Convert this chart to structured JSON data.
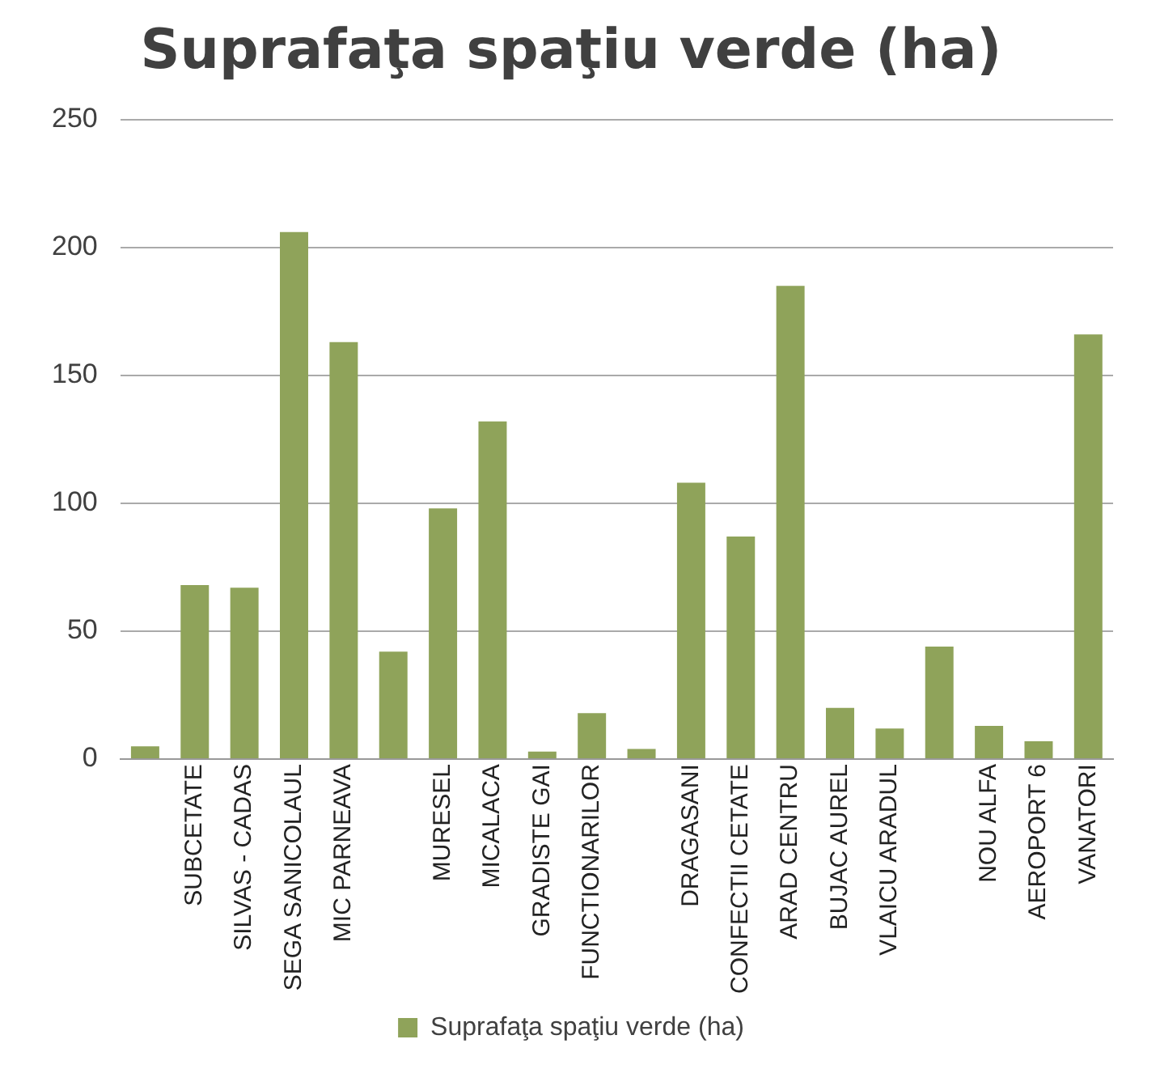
{
  "chart_data": {
    "type": "bar",
    "title": "Suprafaţa spaţiu verde (ha)",
    "categories": [
      null,
      "SUBCETATE",
      "SILVAS - CADAS",
      "SEGA SANICOLAUL",
      "MIC PARNEAVA",
      null,
      "MURESEL",
      "MICALACA",
      "GRADISTE GAI",
      "FUNCTIONARILOR",
      null,
      "DRAGASANI",
      "CONFECTII CETATE",
      "ARAD CENTRU",
      "BUJAC AUREL",
      "VLAICU ARADUL",
      null,
      "NOU ALFA",
      "AEROPORT 6",
      "VANATORI"
    ],
    "series": [
      {
        "name": "Suprafaţa spaţiu verde (ha)",
        "color": "#8fa35a",
        "values": [
          5,
          68,
          67,
          206,
          163,
          42,
          98,
          132,
          3,
          18,
          4,
          108,
          87,
          185,
          20,
          12,
          44,
          13,
          7,
          166
        ]
      }
    ],
    "ylim": [
      0,
      250
    ],
    "yticks": [
      0,
      50,
      100,
      150,
      200,
      250
    ],
    "grid": "y",
    "legend": "bottom"
  }
}
